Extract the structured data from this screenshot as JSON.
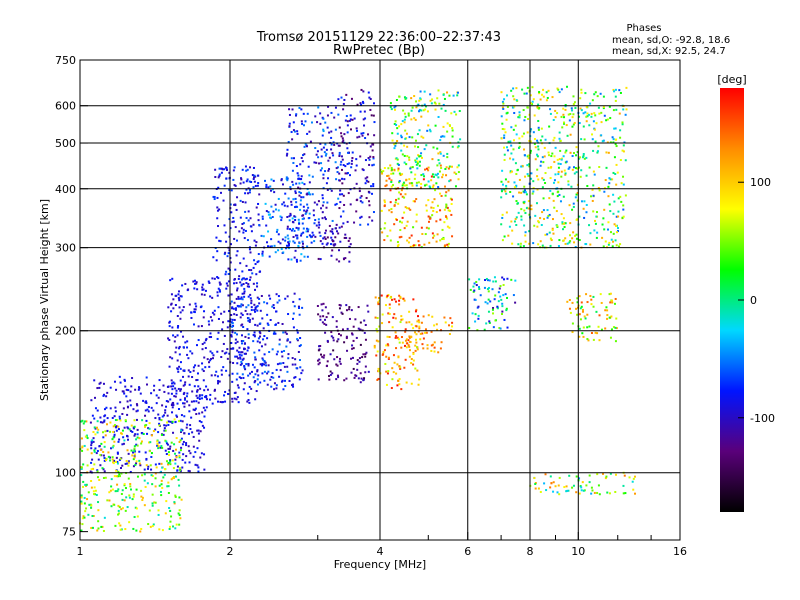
{
  "header": {
    "title": "Tromsø 20151129 22:36:00–22:37:43",
    "subtitle": "RwPretec (Bp)"
  },
  "stats": {
    "heading": "Phases",
    "line_o": "mean, sd,O: -92.8, 18.6",
    "line_x": "mean, sd,X: 92.5, 24.7"
  },
  "colorbar": {
    "label": "[deg]",
    "ticks": [
      {
        "value": 100,
        "label": "100"
      },
      {
        "value": 0,
        "label": "0"
      },
      {
        "value": -100,
        "label": "-100"
      }
    ],
    "range": [
      -180,
      180
    ],
    "colors": [
      "#000000",
      "#5a007a",
      "#0014ff",
      "#00d8ff",
      "#00ff00",
      "#ffff00",
      "#ff8c00",
      "#ff0000"
    ]
  },
  "chart_data": {
    "type": "scatter",
    "xlabel": "Frequency [MHz]",
    "ylabel": "Stationary phase Virtual Height [km]",
    "xscale": "log",
    "yscale": "log",
    "xlim": [
      1,
      16
    ],
    "ylim": [
      72,
      750
    ],
    "x_ticks": [
      {
        "value": 1,
        "label": "1"
      },
      {
        "value": 2,
        "label": "2"
      },
      {
        "value": 4,
        "label": "4"
      },
      {
        "value": 6,
        "label": "6"
      },
      {
        "value": 8,
        "label": "8"
      },
      {
        "value": 10,
        "label": "10"
      },
      {
        "value": 16,
        "label": "16"
      }
    ],
    "x_minor_ticks": [
      3,
      5,
      7,
      9,
      12,
      14
    ],
    "x_gridlines": [
      2,
      4,
      6,
      8,
      10
    ],
    "y_ticks": [
      {
        "value": 750,
        "label": "750"
      },
      {
        "value": 600,
        "label": "600"
      },
      {
        "value": 500,
        "label": "500"
      },
      {
        "value": 400,
        "label": "400"
      },
      {
        "value": 300,
        "label": "300"
      },
      {
        "value": 200,
        "label": "200"
      },
      {
        "value": 100,
        "label": "100"
      },
      {
        "value": 75,
        "label": "75"
      }
    ],
    "y_gridlines": [
      600,
      500,
      400,
      300,
      200,
      100
    ],
    "grid": true,
    "color_by": "phase [deg]",
    "clusters": [
      {
        "x": [
          1.05,
          1.8
        ],
        "y": [
          100,
          160
        ],
        "phase": [
          -110,
          -70
        ]
      },
      {
        "x": [
          1.5,
          2.3
        ],
        "y": [
          140,
          260
        ],
        "phase": [
          -110,
          -70
        ]
      },
      {
        "x": [
          1.85,
          2.3
        ],
        "y": [
          250,
          450
        ],
        "phase": [
          -110,
          -60
        ]
      },
      {
        "x": [
          2.0,
          2.8
        ],
        "y": [
          150,
          240
        ],
        "phase": [
          -110,
          -50
        ]
      },
      {
        "x": [
          2.3,
          2.9
        ],
        "y": [
          280,
          420
        ],
        "phase": [
          -100,
          -30
        ]
      },
      {
        "x": [
          2.6,
          3.3
        ],
        "y": [
          300,
          600
        ],
        "phase": [
          -120,
          -40
        ]
      },
      {
        "x": [
          3.0,
          3.5
        ],
        "y": [
          280,
          340
        ],
        "phase": [
          -140,
          -90
        ]
      },
      {
        "x": [
          3.0,
          3.8
        ],
        "y": [
          155,
          230
        ],
        "phase": [
          -150,
          -100
        ]
      },
      {
        "x": [
          3.3,
          3.9
        ],
        "y": [
          330,
          650
        ],
        "phase": [
          -140,
          -60
        ]
      },
      {
        "x": [
          3.9,
          4.8
        ],
        "y": [
          150,
          240
        ],
        "phase": [
          60,
          180
        ]
      },
      {
        "x": [
          4.0,
          5.6
        ],
        "y": [
          300,
          450
        ],
        "phase": [
          40,
          170
        ]
      },
      {
        "x": [
          4.5,
          5.6
        ],
        "y": [
          180,
          220
        ],
        "phase": [
          80,
          160
        ]
      },
      {
        "x": [
          4.2,
          5.8
        ],
        "y": [
          400,
          650
        ],
        "phase": [
          -60,
          120
        ]
      },
      {
        "x": [
          6.0,
          7.5
        ],
        "y": [
          200,
          260
        ],
        "phase": [
          -120,
          60
        ]
      },
      {
        "x": [
          9.5,
          12
        ],
        "y": [
          190,
          240
        ],
        "phase": [
          0,
          150
        ]
      },
      {
        "x": [
          8.0,
          13
        ],
        "y": [
          90,
          100
        ],
        "phase": [
          -40,
          140
        ]
      },
      {
        "x": [
          1.0,
          1.6
        ],
        "y": [
          75,
          130
        ],
        "phase": [
          -20,
          120
        ]
      },
      {
        "x": [
          7.0,
          12.5
        ],
        "y": [
          300,
          660
        ],
        "phase": [
          -60,
          120
        ]
      }
    ]
  }
}
